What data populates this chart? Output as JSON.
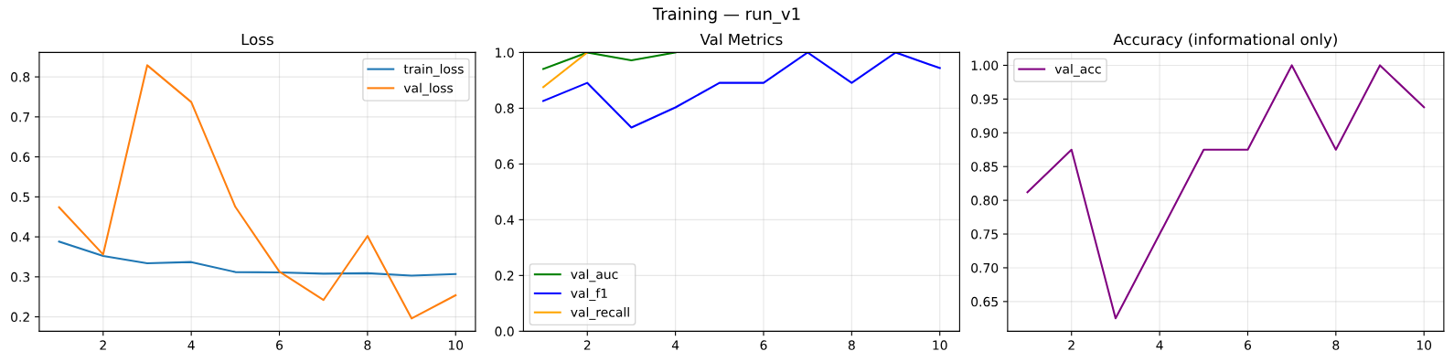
{
  "chart_data": [
    {
      "type": "line",
      "title": "Loss",
      "annotations": [
        "Training — run_v1"
      ],
      "x": [
        1,
        2,
        3,
        4,
        5,
        6,
        7,
        8,
        9,
        10
      ],
      "xlim": [
        0.55,
        10.45
      ],
      "xticks": [
        2,
        4,
        6,
        8,
        10
      ],
      "ylim": [
        0.164,
        0.861
      ],
      "yticks": [
        {
          "value": 0.2,
          "label": "0.2"
        },
        {
          "value": 0.3,
          "label": "0.3"
        },
        {
          "value": 0.4,
          "label": "0.4"
        },
        {
          "value": 0.5,
          "label": "0.5"
        },
        {
          "value": 0.6,
          "label": "0.6"
        },
        {
          "value": 0.7,
          "label": "0.7"
        },
        {
          "value": 0.8,
          "label": "0.8"
        }
      ],
      "grid": true,
      "legend": "top right",
      "series": [
        {
          "name": "train_loss",
          "color": "#1f77b4",
          "values": [
            0.388,
            0.352,
            0.334,
            0.337,
            0.312,
            0.311,
            0.308,
            0.309,
            0.303,
            0.307
          ]
        },
        {
          "name": "val_loss",
          "color": "#ff7f0e",
          "values": [
            0.474,
            0.356,
            0.829,
            0.737,
            0.475,
            0.313,
            0.242,
            0.402,
            0.196,
            0.254
          ]
        }
      ]
    },
    {
      "type": "line",
      "title": "Val Metrics",
      "x": [
        1,
        2,
        3,
        4,
        5,
        6,
        7,
        8,
        9,
        10
      ],
      "xlim": [
        0.55,
        10.45
      ],
      "xticks": [
        2,
        4,
        6,
        8,
        10
      ],
      "ylim": [
        0,
        1
      ],
      "yticks": [
        {
          "value": 0,
          "label": "0.0"
        },
        {
          "value": 0.2,
          "label": "0.2"
        },
        {
          "value": 0.4,
          "label": "0.4"
        },
        {
          "value": 0.6,
          "label": "0.6"
        },
        {
          "value": 0.8,
          "label": "0.8"
        },
        {
          "value": 1,
          "label": "1.0"
        }
      ],
      "grid": true,
      "legend": "bottom left",
      "series": [
        {
          "name": "val_auc",
          "color": "#008000",
          "values": [
            0.941,
            1.0,
            0.972,
            1.0,
            null,
            null,
            null,
            null,
            null,
            null
          ]
        },
        {
          "name": "val_f1",
          "color": "#0000ff",
          "values": [
            0.826,
            0.891,
            0.731,
            0.803,
            0.891,
            0.891,
            1.0,
            0.891,
            1.0,
            0.944
          ]
        },
        {
          "name": "val_recall",
          "color": "#ffa500",
          "values": [
            0.876,
            1.0,
            null,
            null,
            null,
            null,
            null,
            null,
            null,
            null
          ]
        }
      ]
    },
    {
      "type": "line",
      "title": "Accuracy (informational only)",
      "x": [
        1,
        2,
        3,
        4,
        5,
        6,
        7,
        8,
        9,
        10
      ],
      "xlim": [
        0.55,
        10.45
      ],
      "xticks": [
        2,
        4,
        6,
        8,
        10
      ],
      "ylim": [
        0.606,
        1.019
      ],
      "yticks": [
        {
          "value": 0.65,
          "label": "0.65"
        },
        {
          "value": 0.7,
          "label": "0.70"
        },
        {
          "value": 0.75,
          "label": "0.75"
        },
        {
          "value": 0.8,
          "label": "0.80"
        },
        {
          "value": 0.85,
          "label": "0.85"
        },
        {
          "value": 0.9,
          "label": "0.90"
        },
        {
          "value": 0.95,
          "label": "0.95"
        },
        {
          "value": 1.0,
          "label": "1.00"
        }
      ],
      "grid": true,
      "legend": "top left",
      "series": [
        {
          "name": "val_acc",
          "color": "#800080",
          "values": [
            0.812,
            0.875,
            0.625,
            0.75,
            0.875,
            0.875,
            1.0,
            0.875,
            1.0,
            0.938
          ]
        }
      ]
    }
  ]
}
